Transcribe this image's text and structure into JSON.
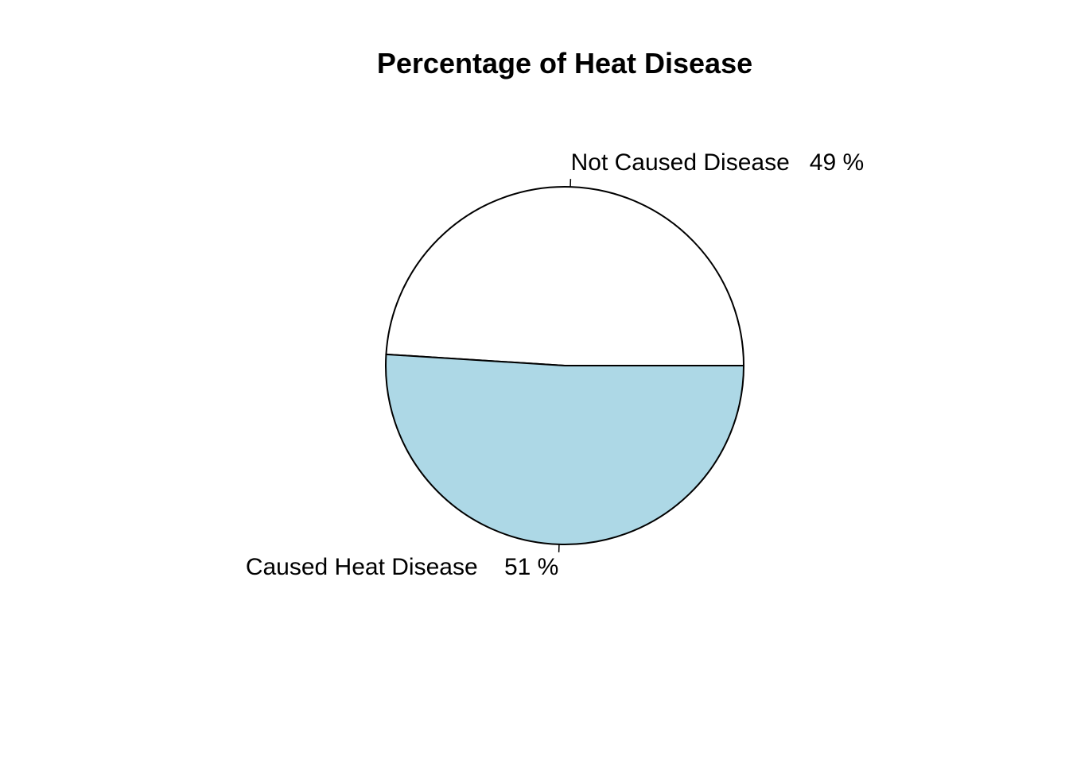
{
  "chart_data": {
    "type": "pie",
    "title": "Percentage of Heat Disease",
    "slices": [
      {
        "label": "Not Caused Disease   49 %",
        "value": 49,
        "color": "#ffffff"
      },
      {
        "label": "Caused Heat Disease    51 %",
        "value": 51,
        "color": "#add8e6"
      }
    ],
    "start_angle_deg": 0,
    "direction": "counterclockwise",
    "legend": "none"
  }
}
